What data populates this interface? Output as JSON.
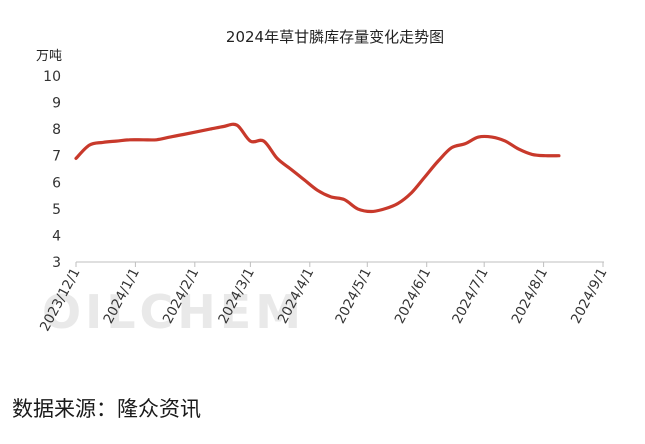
{
  "chart_data": {
    "type": "line",
    "title": "2024年草甘膦库存量变化走势图",
    "ylabel": "万吨",
    "xlabel": "",
    "ylim": [
      3,
      10
    ],
    "yticks": [
      "3",
      "4",
      "5",
      "6",
      "7",
      "8",
      "9",
      "10"
    ],
    "xticks": [
      "2023/12/1",
      "2024/1/1",
      "2024/2/1",
      "2024/3/1",
      "2024/4/1",
      "2024/5/1",
      "2024/6/1",
      "2024/7/1",
      "2024/8/1",
      "2024/9/1"
    ],
    "grid": false,
    "legend": "none",
    "watermark": "OILCHEM",
    "series": [
      {
        "color": "#c8392b",
        "x": [
          "2023/12/1",
          "2023/12/8",
          "2023/12/15",
          "2023/12/22",
          "2023/12/29",
          "2024/1/5",
          "2024/1/12",
          "2024/1/19",
          "2024/1/26",
          "2024/2/2",
          "2024/2/9",
          "2024/2/16",
          "2024/2/23",
          "2024/3/1",
          "2024/3/8",
          "2024/3/15",
          "2024/3/22",
          "2024/3/29",
          "2024/4/5",
          "2024/4/12",
          "2024/4/19",
          "2024/4/26",
          "2024/5/3",
          "2024/5/10",
          "2024/5/17",
          "2024/5/24",
          "2024/5/31",
          "2024/6/7",
          "2024/6/14",
          "2024/6/21",
          "2024/6/28",
          "2024/7/5",
          "2024/7/12",
          "2024/7/19",
          "2024/7/26",
          "2024/8/2",
          "2024/8/9"
        ],
        "values": [
          6.9,
          7.4,
          7.5,
          7.55,
          7.6,
          7.6,
          7.6,
          7.7,
          7.8,
          7.9,
          8.0,
          8.1,
          8.15,
          7.55,
          7.55,
          6.9,
          6.5,
          6.1,
          5.7,
          5.45,
          5.35,
          5.0,
          4.9,
          5.0,
          5.2,
          5.6,
          6.2,
          6.8,
          7.3,
          7.45,
          7.7,
          7.7,
          7.55,
          7.25,
          7.05,
          7.0,
          7.0
        ]
      }
    ]
  },
  "source_text": "数据来源：隆众资讯"
}
